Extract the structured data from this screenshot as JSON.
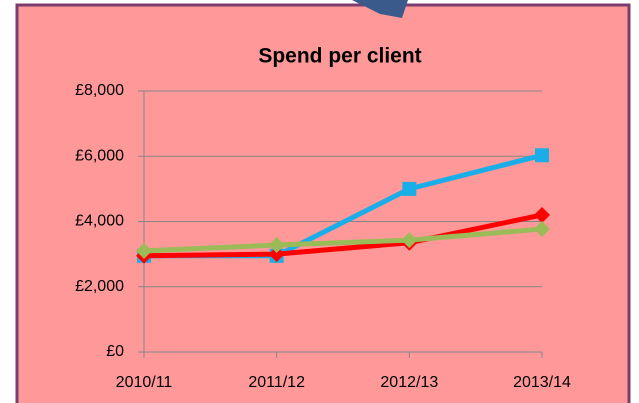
{
  "chart_data": {
    "type": "line",
    "title": "Spend per client",
    "categories": [
      "2010/11",
      "2011/12",
      "2012/13",
      "2013/14"
    ],
    "series": [
      {
        "color": "#1aaee8",
        "marker": "square",
        "values": [
          2950,
          2950,
          5000,
          6030
        ]
      },
      {
        "color": "#ff0000",
        "marker": "diamond",
        "values": [
          2950,
          3000,
          3350,
          4200
        ]
      },
      {
        "color": "#9bbb59",
        "marker": "diamond",
        "values": [
          3100,
          3280,
          3430,
          3770
        ]
      }
    ],
    "ylim": [
      0,
      8000
    ],
    "yticks": [
      {
        "value": 0,
        "label": "£0"
      },
      {
        "value": 2000,
        "label": "£2,000"
      },
      {
        "value": 4000,
        "label": "£4,000"
      },
      {
        "value": 6000,
        "label": "£6,000"
      },
      {
        "value": 8000,
        "label": "£8,000"
      }
    ],
    "grid": true
  }
}
